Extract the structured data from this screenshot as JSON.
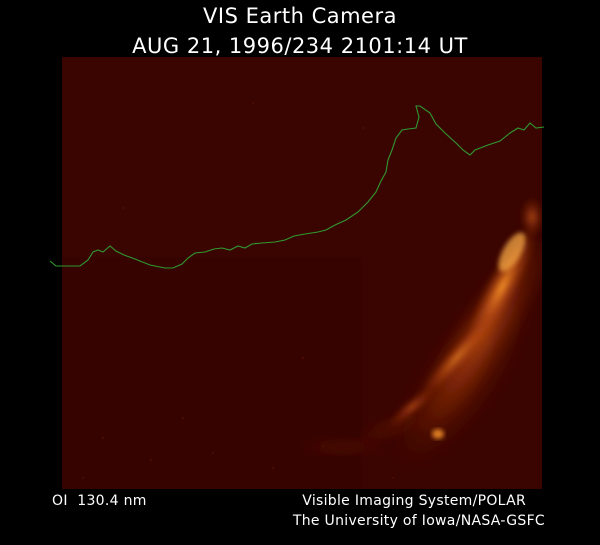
{
  "header": {
    "instrument_title": "VIS Earth Camera",
    "timestamp": "AUG 21, 1996/234 2101:14 UT"
  },
  "image": {
    "background_color": "#3a0400",
    "coastline_color": "#2f9a2f",
    "aurora_colors": [
      "#ff9a2a",
      "#d8601a",
      "#a83a10"
    ]
  },
  "footer": {
    "filter_label": "OI  130.4 nm",
    "system_credit": "Visible Imaging System/POLAR",
    "institution_credit": "The University of Iowa/NASA-GSFC"
  }
}
